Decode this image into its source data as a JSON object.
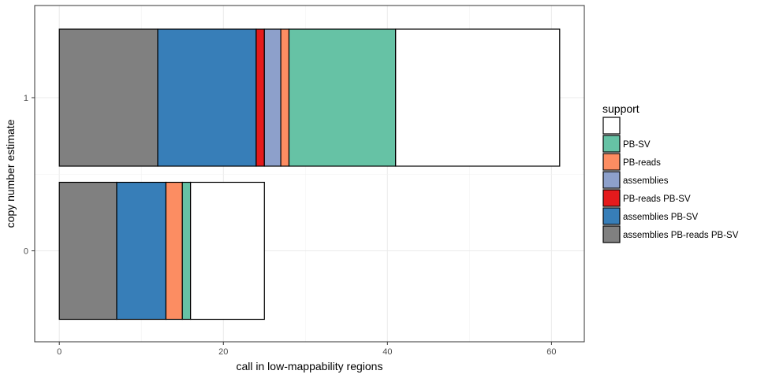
{
  "chart_data": {
    "type": "bar",
    "orientation": "horizontal",
    "stacked": true,
    "xlabel": "call in low-mappability regions",
    "ylabel": "copy number estimate",
    "xlim": [
      -3,
      64
    ],
    "x_ticks": [
      0,
      20,
      40,
      60
    ],
    "categories": [
      "0",
      "1"
    ],
    "grid": true,
    "legend_title": "support",
    "legend_position": "right",
    "series": [
      {
        "name": "assemblies PB-reads PB-SV",
        "color": "#808080",
        "values": [
          7,
          12
        ]
      },
      {
        "name": "assemblies PB-SV",
        "color": "#377EB8",
        "values": [
          6,
          12
        ]
      },
      {
        "name": "PB-reads PB-SV",
        "color": "#E41A1C",
        "values": [
          0,
          1
        ]
      },
      {
        "name": "assemblies",
        "color": "#8DA0CB",
        "values": [
          0,
          2
        ]
      },
      {
        "name": "PB-reads",
        "color": "#FC8D62",
        "values": [
          2,
          1
        ]
      },
      {
        "name": "PB-SV",
        "color": "#66C2A5",
        "values": [
          1,
          13
        ]
      },
      {
        "name": "",
        "color": "#FFFFFF",
        "values": [
          9,
          20
        ]
      }
    ],
    "legend_order": [
      "",
      "PB-SV",
      "PB-reads",
      "assemblies",
      "PB-reads PB-SV",
      "assemblies PB-SV",
      "assemblies PB-reads PB-SV"
    ]
  }
}
